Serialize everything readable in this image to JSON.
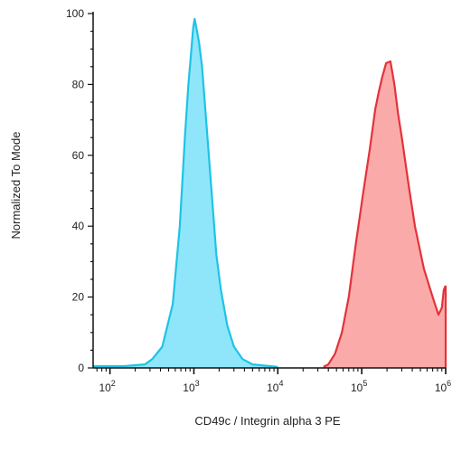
{
  "chart_data": {
    "type": "area",
    "xlabel": "CD49c / Integrin alpha 3 PE",
    "ylabel": "Normalized To Mode",
    "x_scale": "log",
    "xlim": [
      63,
      1000000
    ],
    "ylim": [
      0,
      100
    ],
    "x_ticks": [
      {
        "value": 100,
        "base": "10",
        "exp": "2"
      },
      {
        "value": 1000,
        "base": "10",
        "exp": "3"
      },
      {
        "value": 10000,
        "base": "10",
        "exp": "4"
      },
      {
        "value": 100000,
        "base": "10",
        "exp": "5"
      },
      {
        "value": 1000000,
        "base": "10",
        "exp": "6"
      }
    ],
    "y_ticks": [
      0,
      20,
      40,
      60,
      80,
      100
    ],
    "grid": false,
    "legend": "none",
    "series": [
      {
        "color_fill": "#8fe6fb",
        "color_line": "#1ec3e6",
        "points": [
          [
            63,
            0.5
          ],
          [
            150,
            0.5
          ],
          [
            260,
            1
          ],
          [
            320,
            2.5
          ],
          [
            420,
            6
          ],
          [
            560,
            18
          ],
          [
            680,
            40
          ],
          [
            780,
            65
          ],
          [
            860,
            80
          ],
          [
            920,
            88
          ],
          [
            980,
            96
          ],
          [
            1020,
            98.5
          ],
          [
            1070,
            96
          ],
          [
            1150,
            92
          ],
          [
            1250,
            85
          ],
          [
            1400,
            70
          ],
          [
            1600,
            52
          ],
          [
            1850,
            32
          ],
          [
            2100,
            22
          ],
          [
            2500,
            12
          ],
          [
            3000,
            6
          ],
          [
            3800,
            2.5
          ],
          [
            5000,
            1
          ],
          [
            8000,
            0.5
          ],
          [
            10000,
            0.3
          ]
        ]
      },
      {
        "color_fill": "#fbaaaa",
        "color_line": "#e4323a",
        "points": [
          [
            35000,
            0.3
          ],
          [
            40000,
            1
          ],
          [
            48000,
            4
          ],
          [
            58000,
            10
          ],
          [
            70000,
            20
          ],
          [
            85000,
            35
          ],
          [
            105000,
            50
          ],
          [
            125000,
            62
          ],
          [
            145000,
            73
          ],
          [
            160000,
            78
          ],
          [
            175000,
            82
          ],
          [
            195000,
            86
          ],
          [
            220000,
            86.5
          ],
          [
            245000,
            80
          ],
          [
            270000,
            72
          ],
          [
            300000,
            65
          ],
          [
            360000,
            52
          ],
          [
            430000,
            40
          ],
          [
            550000,
            28
          ],
          [
            700000,
            20
          ],
          [
            820000,
            15
          ],
          [
            900000,
            17
          ],
          [
            950000,
            22
          ],
          [
            990000,
            23
          ],
          [
            1000000,
            23
          ],
          [
            1000000,
            0
          ]
        ]
      }
    ]
  }
}
